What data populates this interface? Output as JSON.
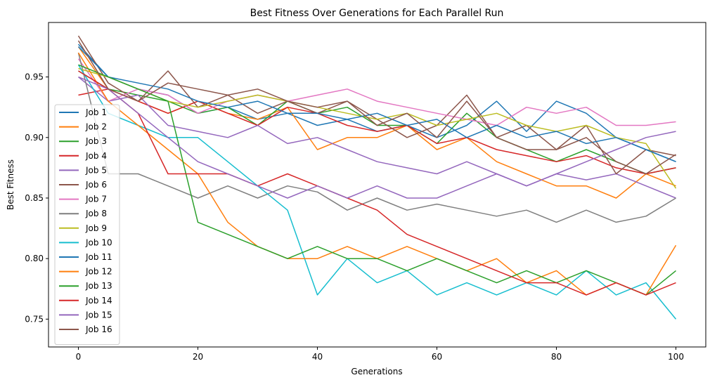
{
  "chart_data": {
    "type": "line",
    "title": "Best Fitness Over Generations for Each Parallel Run",
    "xlabel": "Generations",
    "ylabel": "Best Fitness",
    "xlim": [
      -5,
      105
    ],
    "ylim": [
      0.727,
      0.995
    ],
    "xticks": [
      0,
      20,
      40,
      60,
      80,
      100
    ],
    "yticks": [
      0.75,
      0.8,
      0.85,
      0.9,
      0.95
    ],
    "ytick_labels": [
      "0.75",
      "0.80",
      "0.85",
      "0.90",
      "0.95"
    ],
    "grid": false,
    "legend_position": "center-left",
    "series": [
      {
        "name": "Job 1",
        "color": "#1f77b4",
        "x": [
          0,
          5,
          10,
          15,
          20,
          25,
          30,
          35,
          40,
          45,
          50,
          55,
          60,
          65,
          70,
          75,
          80,
          85,
          90,
          95,
          100
        ],
        "y": [
          0.977,
          0.95,
          0.94,
          0.935,
          0.92,
          0.925,
          0.915,
          0.92,
          0.91,
          0.915,
          0.905,
          0.91,
          0.9,
          0.91,
          0.93,
          0.905,
          0.93,
          0.92,
          0.9,
          0.89,
          0.88
        ]
      },
      {
        "name": "Job 2",
        "color": "#ff7f0e",
        "x": [
          0,
          5,
          10,
          15,
          20,
          25,
          30,
          35,
          40,
          45,
          50,
          55,
          60,
          65,
          70,
          75,
          80,
          85,
          90,
          95,
          100
        ],
        "y": [
          0.975,
          0.94,
          0.93,
          0.92,
          0.93,
          0.92,
          0.915,
          0.925,
          0.89,
          0.9,
          0.9,
          0.91,
          0.89,
          0.9,
          0.88,
          0.87,
          0.86,
          0.86,
          0.85,
          0.87,
          0.86
        ]
      },
      {
        "name": "Job 3",
        "color": "#2ca02c",
        "x": [
          0,
          5,
          10,
          15,
          20,
          25,
          30,
          35,
          40,
          45,
          50,
          55,
          60,
          65,
          70,
          75,
          80,
          85,
          90,
          95,
          100
        ],
        "y": [
          0.955,
          0.94,
          0.935,
          0.93,
          0.92,
          0.925,
          0.91,
          0.93,
          0.92,
          0.925,
          0.91,
          0.91,
          0.895,
          0.92,
          0.9,
          0.89,
          0.88,
          0.89,
          0.88,
          0.87,
          0.875
        ]
      },
      {
        "name": "Job 4",
        "color": "#d62728",
        "x": [
          0,
          5,
          10,
          15,
          20,
          25,
          30,
          35,
          40,
          45,
          50,
          55,
          60,
          65,
          70,
          75,
          80,
          85,
          90,
          95,
          100
        ],
        "y": [
          0.935,
          0.94,
          0.93,
          0.92,
          0.93,
          0.92,
          0.91,
          0.925,
          0.92,
          0.91,
          0.905,
          0.91,
          0.895,
          0.9,
          0.89,
          0.885,
          0.88,
          0.885,
          0.875,
          0.87,
          0.875
        ]
      },
      {
        "name": "Job 5",
        "color": "#9467bd",
        "x": [
          0,
          5,
          10,
          15,
          20,
          25,
          30,
          35,
          40,
          45,
          50,
          55,
          60,
          65,
          70,
          75,
          80,
          85,
          90,
          95,
          100
        ],
        "y": [
          0.95,
          0.93,
          0.935,
          0.91,
          0.905,
          0.9,
          0.91,
          0.895,
          0.9,
          0.89,
          0.88,
          0.875,
          0.87,
          0.88,
          0.87,
          0.86,
          0.87,
          0.865,
          0.87,
          0.86,
          0.85
        ]
      },
      {
        "name": "Job 6",
        "color": "#8c564b",
        "x": [
          0,
          5,
          10,
          15,
          20,
          25,
          30,
          35,
          40,
          45,
          50,
          55,
          60,
          65,
          70,
          75,
          80,
          85,
          90,
          95,
          100
        ],
        "y": [
          0.984,
          0.945,
          0.93,
          0.955,
          0.925,
          0.935,
          0.92,
          0.93,
          0.92,
          0.93,
          0.915,
          0.9,
          0.91,
          0.935,
          0.9,
          0.91,
          0.89,
          0.91,
          0.87,
          0.89,
          0.885
        ]
      },
      {
        "name": "Job 7",
        "color": "#e377c2",
        "x": [
          0,
          5,
          10,
          15,
          20,
          25,
          30,
          35,
          40,
          45,
          50,
          55,
          60,
          65,
          70,
          75,
          80,
          85,
          90,
          95,
          100
        ],
        "y": [
          0.965,
          0.93,
          0.94,
          0.935,
          0.92,
          0.93,
          0.935,
          0.93,
          0.935,
          0.94,
          0.93,
          0.925,
          0.92,
          0.915,
          0.91,
          0.925,
          0.92,
          0.925,
          0.91,
          0.91,
          0.913
        ]
      },
      {
        "name": "Job 8",
        "color": "#7f7f7f",
        "x": [
          0,
          5,
          10,
          15,
          20,
          25,
          30,
          35,
          40,
          45,
          50,
          55,
          60,
          65,
          70,
          75,
          80,
          85,
          90,
          95,
          100
        ],
        "y": [
          0.97,
          0.87,
          0.87,
          0.86,
          0.85,
          0.86,
          0.85,
          0.86,
          0.855,
          0.84,
          0.85,
          0.84,
          0.845,
          0.84,
          0.835,
          0.84,
          0.83,
          0.84,
          0.83,
          0.835,
          0.85
        ]
      },
      {
        "name": "Job 9",
        "color": "#bcbd22",
        "x": [
          0,
          5,
          10,
          15,
          20,
          25,
          30,
          35,
          40,
          45,
          50,
          55,
          60,
          65,
          70,
          75,
          80,
          85,
          90,
          95,
          100
        ],
        "y": [
          0.957,
          0.95,
          0.94,
          0.93,
          0.925,
          0.93,
          0.935,
          0.93,
          0.925,
          0.92,
          0.915,
          0.92,
          0.91,
          0.915,
          0.92,
          0.91,
          0.905,
          0.91,
          0.9,
          0.895,
          0.858
        ]
      },
      {
        "name": "Job 10",
        "color": "#17becf",
        "x": [
          0,
          5,
          10,
          15,
          20,
          25,
          30,
          35,
          40,
          45,
          50,
          55,
          60,
          65,
          70,
          75,
          80,
          85,
          90,
          95,
          100
        ],
        "y": [
          0.96,
          0.92,
          0.91,
          0.9,
          0.9,
          0.88,
          0.86,
          0.84,
          0.77,
          0.8,
          0.78,
          0.79,
          0.77,
          0.78,
          0.77,
          0.78,
          0.77,
          0.79,
          0.77,
          0.78,
          0.75
        ]
      },
      {
        "name": "Job 11",
        "color": "#1f77b4",
        "x": [
          0,
          5,
          10,
          15,
          20,
          25,
          30,
          35,
          40,
          45,
          50,
          55,
          60,
          65,
          70,
          75,
          80,
          85,
          90,
          95,
          100
        ],
        "y": [
          0.975,
          0.95,
          0.945,
          0.94,
          0.93,
          0.925,
          0.93,
          0.92,
          0.92,
          0.915,
          0.92,
          0.91,
          0.915,
          0.9,
          0.91,
          0.9,
          0.905,
          0.895,
          0.9,
          0.89,
          0.88
        ]
      },
      {
        "name": "Job 12",
        "color": "#ff7f0e",
        "x": [
          0,
          5,
          10,
          15,
          20,
          25,
          30,
          35,
          40,
          45,
          50,
          55,
          60,
          65,
          70,
          75,
          80,
          85,
          90,
          95,
          100
        ],
        "y": [
          0.97,
          0.93,
          0.91,
          0.89,
          0.87,
          0.83,
          0.81,
          0.8,
          0.8,
          0.81,
          0.8,
          0.81,
          0.8,
          0.79,
          0.8,
          0.78,
          0.79,
          0.77,
          0.78,
          0.77,
          0.811
        ]
      },
      {
        "name": "Job 13",
        "color": "#2ca02c",
        "x": [
          0,
          5,
          10,
          15,
          20,
          25,
          30,
          35,
          40,
          45,
          50,
          55,
          60,
          65,
          70,
          75,
          80,
          85,
          90,
          95,
          100
        ],
        "y": [
          0.96,
          0.95,
          0.94,
          0.93,
          0.83,
          0.82,
          0.81,
          0.8,
          0.81,
          0.8,
          0.8,
          0.79,
          0.8,
          0.79,
          0.78,
          0.79,
          0.78,
          0.79,
          0.78,
          0.77,
          0.79
        ]
      },
      {
        "name": "Job 14",
        "color": "#d62728",
        "x": [
          0,
          5,
          10,
          15,
          20,
          25,
          30,
          35,
          40,
          45,
          50,
          55,
          60,
          65,
          70,
          75,
          80,
          85,
          90,
          95,
          100
        ],
        "y": [
          0.955,
          0.94,
          0.92,
          0.87,
          0.87,
          0.87,
          0.86,
          0.87,
          0.86,
          0.85,
          0.84,
          0.82,
          0.81,
          0.8,
          0.79,
          0.78,
          0.78,
          0.77,
          0.78,
          0.77,
          0.78
        ]
      },
      {
        "name": "Job 15",
        "color": "#9467bd",
        "x": [
          0,
          5,
          10,
          15,
          20,
          25,
          30,
          35,
          40,
          45,
          50,
          55,
          60,
          65,
          70,
          75,
          80,
          85,
          90,
          95,
          100
        ],
        "y": [
          0.95,
          0.94,
          0.92,
          0.9,
          0.88,
          0.87,
          0.86,
          0.85,
          0.86,
          0.85,
          0.86,
          0.85,
          0.85,
          0.86,
          0.87,
          0.86,
          0.87,
          0.88,
          0.89,
          0.9,
          0.905
        ]
      },
      {
        "name": "Job 16",
        "color": "#8c564b",
        "x": [
          0,
          5,
          10,
          15,
          20,
          25,
          30,
          35,
          40,
          45,
          50,
          55,
          60,
          65,
          70,
          75,
          80,
          85,
          90,
          95,
          100
        ],
        "y": [
          0.98,
          0.94,
          0.93,
          0.945,
          0.94,
          0.935,
          0.94,
          0.93,
          0.925,
          0.93,
          0.91,
          0.92,
          0.9,
          0.93,
          0.9,
          0.89,
          0.89,
          0.9,
          0.88,
          0.87,
          0.886
        ]
      }
    ]
  }
}
